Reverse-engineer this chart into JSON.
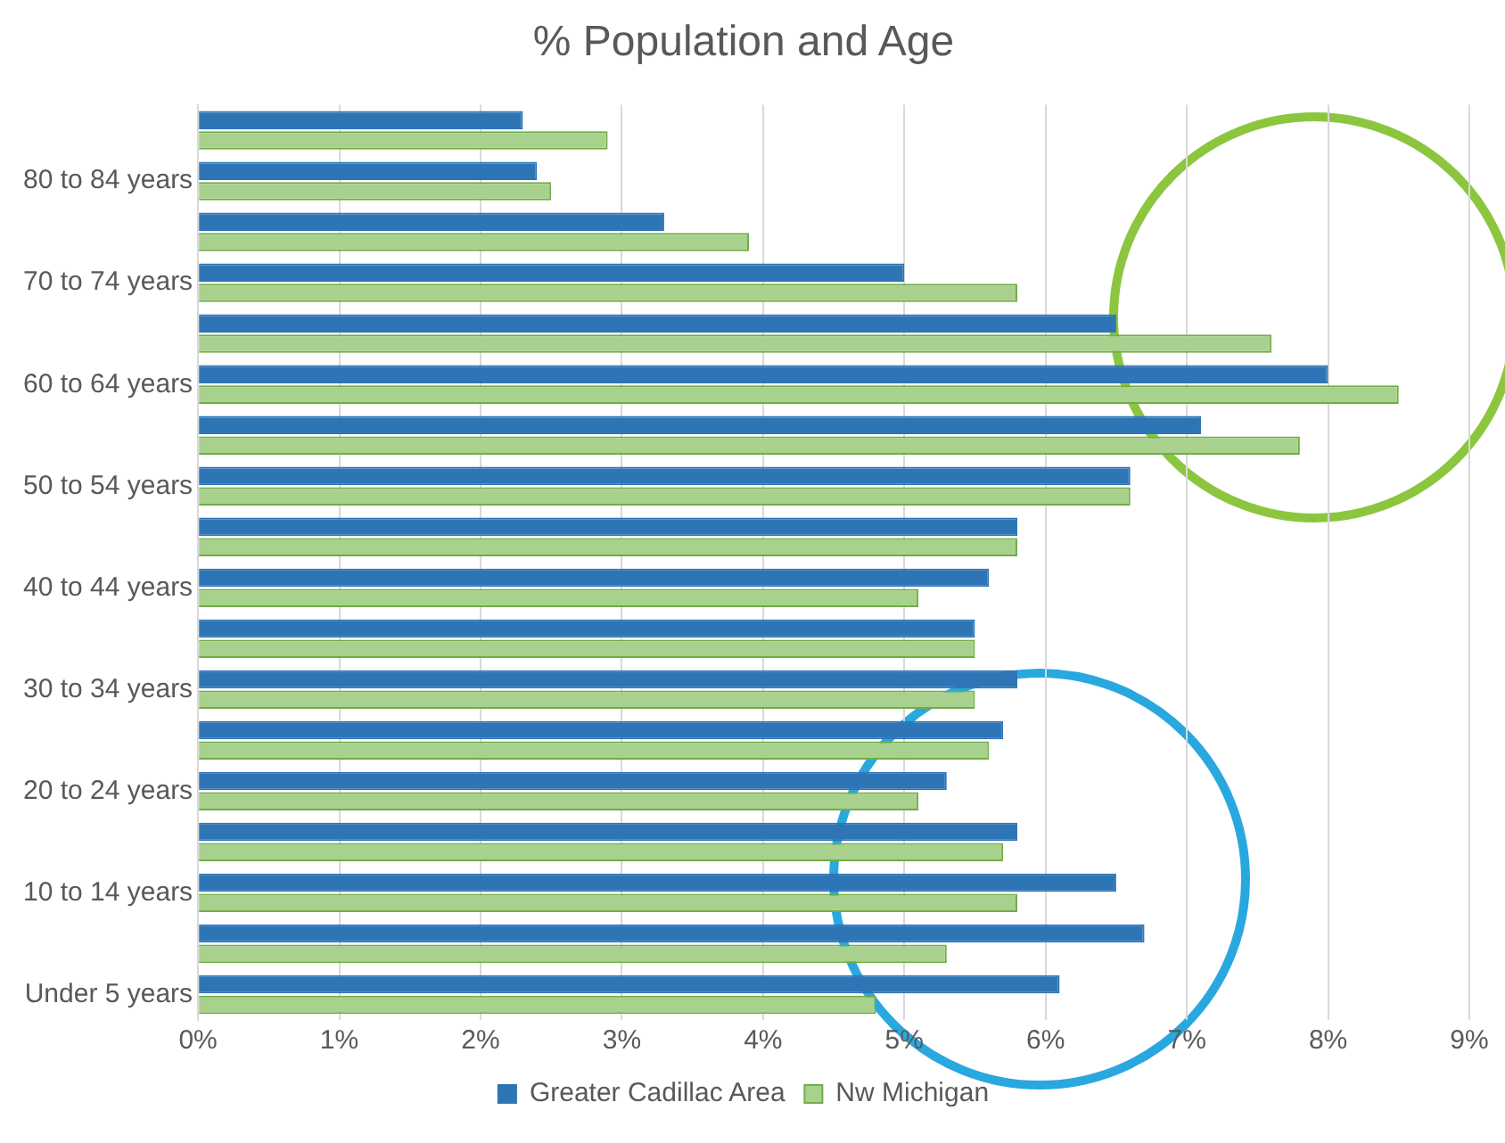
{
  "chart_data": {
    "type": "bar",
    "orientation": "horizontal",
    "title": "% Population and Age",
    "categories": [
      null,
      "80 to 84 years",
      null,
      "70 to 74 years",
      null,
      "60 to 64 years",
      null,
      "50 to 54 years",
      null,
      "40 to 44 years",
      null,
      "30 to 34 years",
      null,
      "20 to 24 years",
      null,
      "10 to 14 years",
      null,
      "Under 5 years"
    ],
    "series": [
      {
        "name": "Greater Cadillac Area",
        "color": "#2e75b6",
        "values": [
          2.3,
          2.4,
          3.3,
          5.0,
          6.5,
          8.0,
          7.1,
          6.6,
          5.8,
          5.6,
          5.5,
          5.8,
          5.7,
          5.3,
          5.8,
          6.5,
          6.7,
          6.1
        ]
      },
      {
        "name": "Nw Michigan",
        "color": "#a9d18e",
        "values": [
          2.9,
          2.5,
          3.9,
          5.8,
          7.6,
          8.5,
          7.8,
          6.6,
          5.8,
          5.1,
          5.5,
          5.5,
          5.6,
          5.1,
          5.7,
          5.8,
          5.3,
          4.8
        ]
      }
    ],
    "xlim": [
      0,
      9
    ],
    "xticks": [
      {
        "value": 0,
        "label": "0%"
      },
      {
        "value": 1,
        "label": "1%"
      },
      {
        "value": 2,
        "label": "2%"
      },
      {
        "value": 3,
        "label": "3%"
      },
      {
        "value": 4,
        "label": "4%"
      },
      {
        "value": 5,
        "label": "5%"
      },
      {
        "value": 6,
        "label": "6%"
      },
      {
        "value": 7,
        "label": "7%"
      },
      {
        "value": 8,
        "label": "8%"
      },
      {
        "value": 9,
        "label": "9%"
      }
    ],
    "grid": "x",
    "legend": "bottom"
  }
}
